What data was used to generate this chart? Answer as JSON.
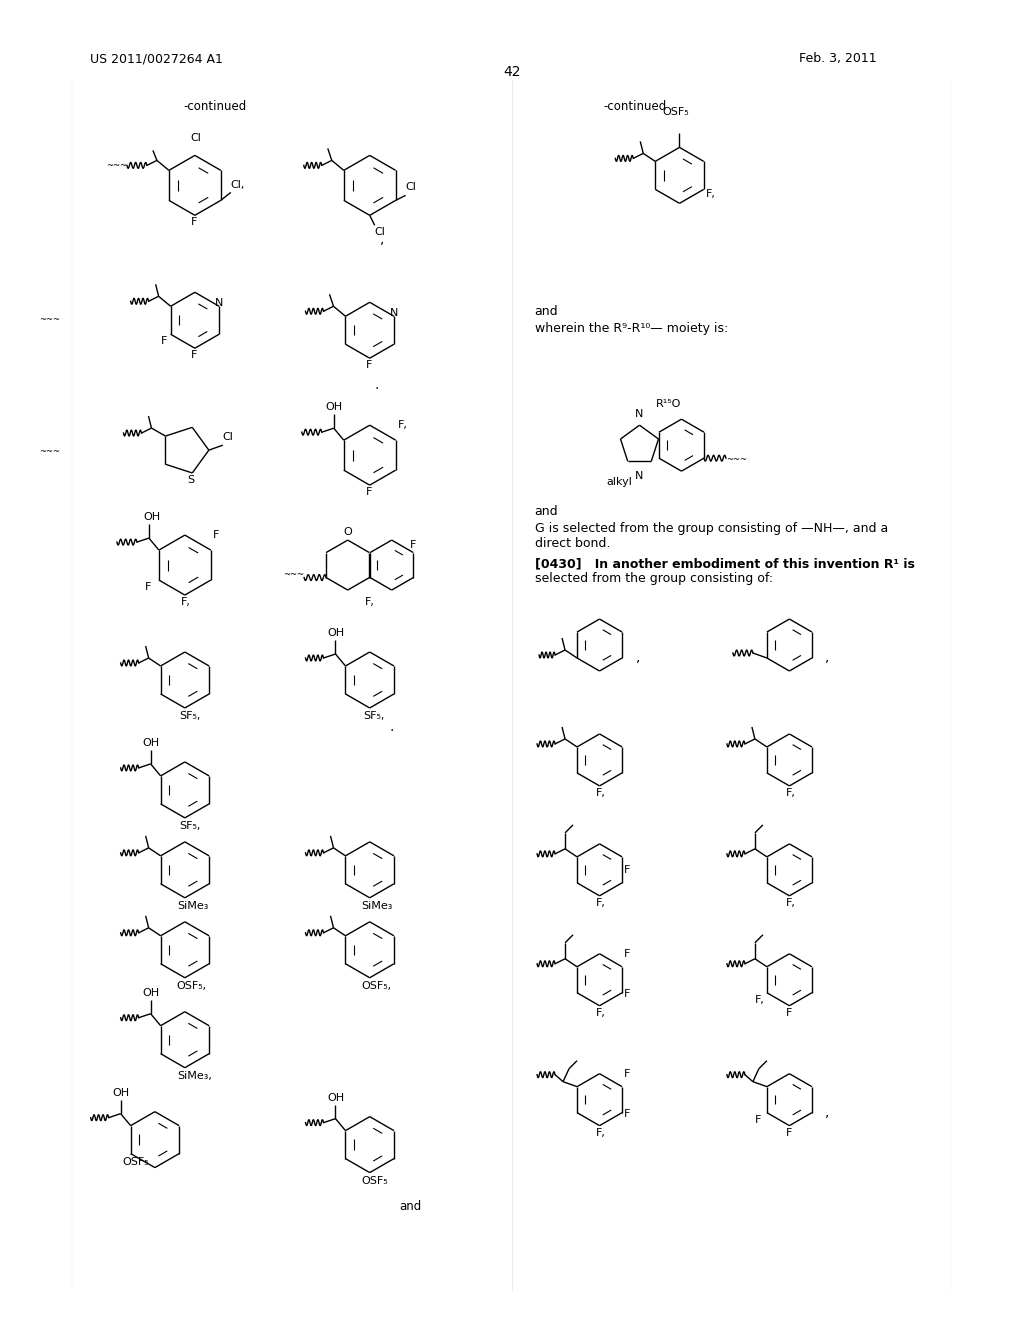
{
  "page_number": "42",
  "patent_number": "US 2011/0027264 A1",
  "patent_date": "Feb. 3, 2011",
  "background_color": "#ffffff",
  "text_color": "#000000",
  "figsize": [
    10.24,
    13.2
  ],
  "dpi": 100
}
